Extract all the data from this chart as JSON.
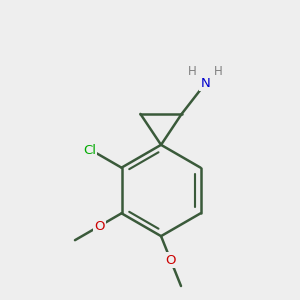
{
  "background_color": "#eeeeee",
  "bond_color": "#3a5a3a",
  "bond_width": 1.8,
  "N_color": "#0000cc",
  "O_color": "#cc0000",
  "Cl_color": "#00aa00",
  "H_color": "#808080",
  "figsize": [
    3.0,
    3.0
  ],
  "dpi": 100,
  "xlim": [
    -2.0,
    2.0
  ],
  "ylim": [
    -2.2,
    1.8
  ]
}
